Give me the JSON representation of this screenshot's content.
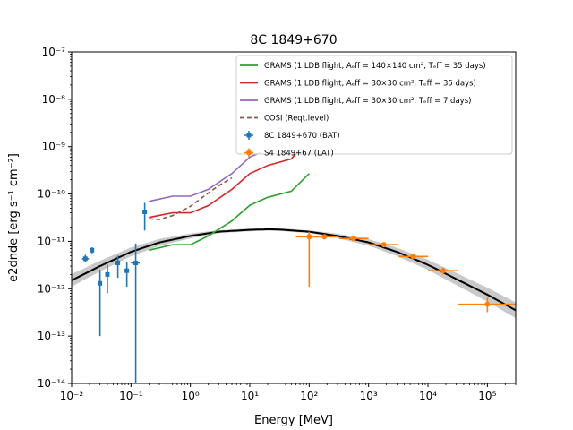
{
  "chart_data": {
    "type": "line",
    "title": "8C 1849+670",
    "xlabel": "Energy [MeV]",
    "ylabel": "e2dnde [erg s⁻¹ cm⁻²]",
    "xscale": "log",
    "yscale": "log",
    "xlim": [
      0.01,
      300000
    ],
    "ylim": [
      1e-14,
      1e-07
    ],
    "x_ticks": [
      "10⁻²",
      "10⁻¹",
      "10⁰",
      "10¹",
      "10²",
      "10³",
      "10⁴",
      "10⁵"
    ],
    "y_ticks": [
      "10⁻¹⁴",
      "10⁻¹³",
      "10⁻¹²",
      "10⁻¹¹",
      "10⁻¹⁰",
      "10⁻⁹",
      "10⁻⁸",
      "10⁻⁷"
    ],
    "grid": false,
    "legend_position": "top-right",
    "series": [
      {
        "name": "GRAMS (1 LDB flight, A_eff = 140×140 cm², T_eff = 35 days)",
        "legend_text": "GRAMS (1 LDB flight, Aₑff = 140×140 cm², Tₑff = 35 days)",
        "kind": "line",
        "color": "#2ca02c",
        "dash": "",
        "x": [
          0.2,
          0.5,
          1,
          2,
          5,
          10,
          20,
          50,
          100
        ],
        "y": [
          6.5e-12,
          8.5e-12,
          8.5e-12,
          1.3e-11,
          2.7e-11,
          5.8e-11,
          8.5e-11,
          1.15e-10,
          2.7e-10
        ]
      },
      {
        "name": "GRAMS (1 LDB flight, A_eff = 30×30 cm², T_eff = 35 days)",
        "legend_text": "GRAMS (1 LDB flight, Aₑff = 30×30 cm², Tₑff = 35 days)",
        "kind": "line",
        "color": "#d62728",
        "dash": "",
        "x": [
          0.2,
          0.5,
          1,
          2,
          5,
          10,
          20,
          50,
          70
        ],
        "y": [
          3.2e-11,
          4e-11,
          4e-11,
          5.7e-11,
          1.25e-10,
          2.7e-10,
          4e-10,
          5.5e-10,
          9e-10
        ]
      },
      {
        "name": "GRAMS (1 LDB flight, A_eff = 30×30 cm², T_eff = 7 days)",
        "legend_text": "GRAMS (1 LDB flight, Aₑff = 30×30 cm², Tₑff = 7 days)",
        "kind": "line",
        "color": "#9467bd",
        "dash": "",
        "x": [
          0.2,
          0.5,
          1,
          2,
          5,
          10,
          15
        ],
        "y": [
          7e-11,
          9e-11,
          9e-11,
          1.25e-10,
          2.7e-10,
          6e-10,
          7.5e-10
        ]
      },
      {
        "name": "COSI (Reqt.level)",
        "legend_text": "COSI (Reqt.level)",
        "kind": "line",
        "color": "#8c564b",
        "dash": "5,3",
        "x": [
          0.2,
          0.3,
          0.5,
          1,
          2,
          3,
          5
        ],
        "y": [
          3e-11,
          2.9e-11,
          3.5e-11,
          5.5e-11,
          1.05e-10,
          1.5e-10,
          2.2e-10
        ]
      },
      {
        "name": "8C 1849+670 (BAT)",
        "legend_text": "8C 1849+670 (BAT)",
        "kind": "points",
        "color": "#1f77b4",
        "marker": "square",
        "points": [
          {
            "x": 0.017,
            "y": 4.3e-12,
            "ylo": 3.6e-12,
            "yhi": 5.2e-12,
            "xlo": 0.015,
            "xhi": 0.0195
          },
          {
            "x": 0.022,
            "y": 6.5e-12,
            "ylo": 5.6e-12,
            "yhi": 7.5e-12,
            "xlo": 0.0205,
            "xhi": 0.0235
          },
          {
            "x": 0.03,
            "y": 1.3e-12,
            "ylo": 1e-13,
            "yhi": 2.5e-12,
            "xlo": 0.028,
            "xhi": 0.032
          },
          {
            "x": 0.04,
            "y": 2e-12,
            "ylo": 8e-13,
            "yhi": 3.2e-12,
            "xlo": 0.037,
            "xhi": 0.043
          },
          {
            "x": 0.06,
            "y": 3.5e-12,
            "ylo": 1.7e-12,
            "yhi": 5e-12,
            "xlo": 0.055,
            "xhi": 0.065
          },
          {
            "x": 0.085,
            "y": 2.4e-12,
            "ylo": 1.1e-12,
            "yhi": 3.7e-12,
            "xlo": 0.078,
            "xhi": 0.092
          },
          {
            "x": 0.12,
            "y": 3.5e-12,
            "ylo": 1e-14,
            "yhi": 9e-12,
            "xlo": 0.1,
            "xhi": 0.14
          },
          {
            "x": 0.17,
            "y": 4.2e-11,
            "ylo": 1.7e-11,
            "yhi": 6.5e-11,
            "xlo": 0.155,
            "xhi": 0.185
          }
        ]
      },
      {
        "name": "S4 1849+67 (LAT)",
        "legend_text": "S4 1849+67 (LAT)",
        "kind": "points",
        "color": "#ff7f0e",
        "marker": "circle",
        "points": [
          {
            "x": 100,
            "y": 1.25e-11,
            "ylo": 1.1e-12,
            "yhi": 1.6e-11,
            "xlo": 60,
            "xhi": 180
          },
          {
            "x": 180,
            "y": 1.25e-11,
            "ylo": 1.1e-11,
            "yhi": 1.4e-11,
            "xlo": 120,
            "xhi": 300
          },
          {
            "x": 560,
            "y": 1.15e-11,
            "ylo": 1.05e-11,
            "yhi": 1.25e-11,
            "xlo": 320,
            "xhi": 1000
          },
          {
            "x": 1800,
            "y": 8.5e-12,
            "ylo": 7.7e-12,
            "yhi": 9.3e-12,
            "xlo": 1000,
            "xhi": 3200
          },
          {
            "x": 5600,
            "y": 4.8e-12,
            "ylo": 4.2e-12,
            "yhi": 5.4e-12,
            "xlo": 3200,
            "xhi": 10000
          },
          {
            "x": 18000,
            "y": 2.4e-12,
            "ylo": 2e-12,
            "yhi": 2.8e-12,
            "xlo": 10000,
            "xhi": 32000
          },
          {
            "x": 100000,
            "y": 4.7e-13,
            "ylo": 3.2e-13,
            "yhi": 6.5e-13,
            "xlo": 32000,
            "xhi": 300000
          }
        ]
      }
    ],
    "model_curve": {
      "color": "#000000",
      "band_color": "#bbbbbb",
      "x": [
        0.01,
        0.03,
        0.1,
        0.3,
        1,
        3,
        10,
        20,
        30,
        100,
        300,
        1000,
        3000,
        10000,
        30000,
        100000,
        300000
      ],
      "y": [
        1.5e-12,
        3e-12,
        6e-12,
        9.5e-12,
        1.3e-11,
        1.6e-11,
        1.75e-11,
        1.8e-11,
        1.78e-11,
        1.6e-11,
        1.3e-11,
        9.5e-12,
        6e-12,
        3.2e-12,
        1.6e-12,
        7.5e-13,
        3.5e-13
      ]
    }
  }
}
